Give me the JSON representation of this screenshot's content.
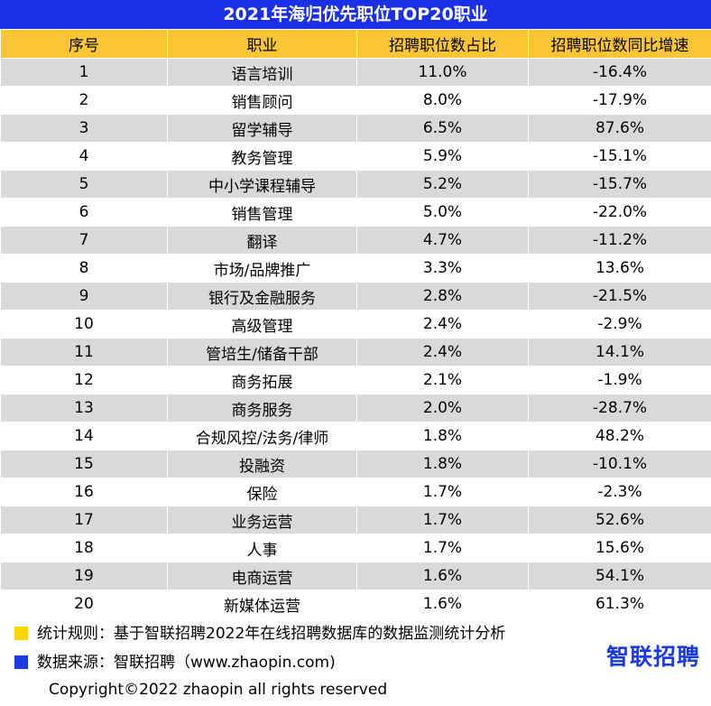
{
  "title": "2021年海归优先职位TOP20职业",
  "headers": [
    "序号",
    "职业",
    "招聘职位数占比",
    "招聘职位数同比增速"
  ],
  "rows": [
    [
      "1",
      "语言培训",
      "11.0%",
      "-16.4%"
    ],
    [
      "2",
      "销售顾问",
      "8.0%",
      "-17.9%"
    ],
    [
      "3",
      "留学辅导",
      "6.5%",
      "87.6%"
    ],
    [
      "4",
      "教务管理",
      "5.9%",
      "-15.1%"
    ],
    [
      "5",
      "中小学课程辅导",
      "5.2%",
      "-15.7%"
    ],
    [
      "6",
      "销售管理",
      "5.0%",
      "-22.0%"
    ],
    [
      "7",
      "翻译",
      "4.7%",
      "-11.2%"
    ],
    [
      "8",
      "市场/品牌推广",
      "3.3%",
      "13.6%"
    ],
    [
      "9",
      "银行及金融服务",
      "2.8%",
      "-21.5%"
    ],
    [
      "10",
      "高级管理",
      "2.4%",
      "-2.9%"
    ],
    [
      "11",
      "管培生/储备干部",
      "2.4%",
      "14.1%"
    ],
    [
      "12",
      "商务拓展",
      "2.1%",
      "-1.9%"
    ],
    [
      "13",
      "商务服务",
      "2.0%",
      "-28.7%"
    ],
    [
      "14",
      "合规风控/法务/律师",
      "1.8%",
      "48.2%"
    ],
    [
      "15",
      "投融资",
      "1.8%",
      "-10.1%"
    ],
    [
      "16",
      "保险",
      "1.7%",
      "-2.3%"
    ],
    [
      "17",
      "业务运营",
      "1.7%",
      "52.6%"
    ],
    [
      "18",
      "人事",
      "1.7%",
      "15.6%"
    ],
    [
      "19",
      "电商运营",
      "1.6%",
      "54.1%"
    ],
    [
      "20",
      "新媒体运营",
      "1.6%",
      "61.3%"
    ]
  ],
  "footer": {
    "note1": "统计规则：基于智联招聘2022年在线招聘数据库的数据监测统计分析",
    "note2": "数据来源：智联招聘（www.zhaopin.com)",
    "note1_color": "#ffd700",
    "note2_color": "#1a3be0",
    "logo": "智联招聘",
    "copyright": "Copyright©2022 zhaopin all rights reserved"
  },
  "colors": {
    "title_bg": "#1a2fe6",
    "header_bg": "#fcc534",
    "row_stripe": "#d9d9d9"
  }
}
